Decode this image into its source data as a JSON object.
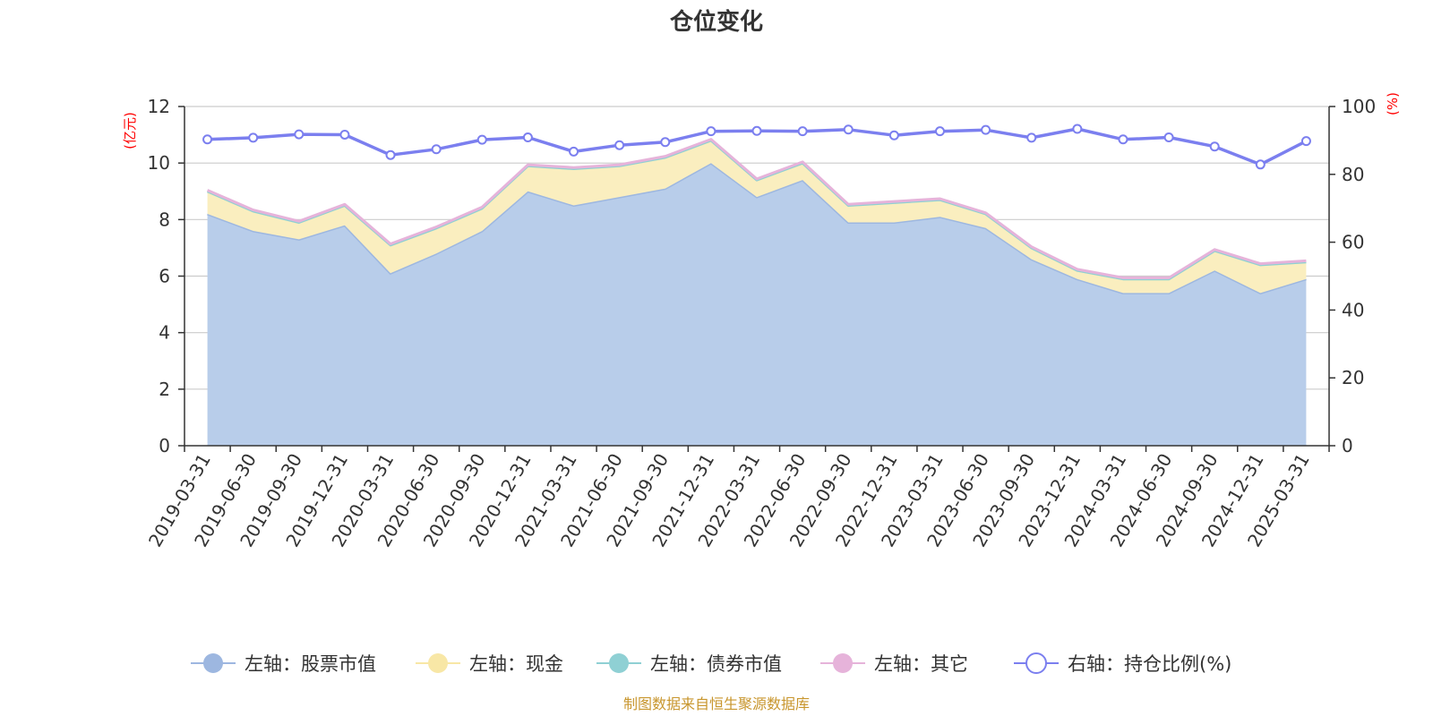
{
  "chart_data": {
    "type": "area",
    "title": "仓位变化",
    "left_axis_unit": "(亿元)",
    "right_axis_unit": "(%)",
    "ylim_left": [
      0,
      12
    ],
    "yticks_left": [
      "0",
      "2",
      "4",
      "6",
      "8",
      "10",
      "12"
    ],
    "ylim_right": [
      0,
      100
    ],
    "yticks_right": [
      "0",
      "20",
      "40",
      "60",
      "80",
      "100"
    ],
    "grid": true,
    "legend_position": "bottom",
    "categories": [
      "2019-03-31",
      "2019-06-30",
      "2019-09-30",
      "2019-12-31",
      "2020-03-31",
      "2020-06-30",
      "2020-09-30",
      "2020-12-31",
      "2021-03-31",
      "2021-06-30",
      "2021-09-30",
      "2021-12-31",
      "2022-03-31",
      "2022-06-30",
      "2022-09-30",
      "2022-12-31",
      "2023-03-31",
      "2023-06-30",
      "2023-09-30",
      "2023-12-31",
      "2024-03-31",
      "2024-06-30",
      "2024-09-30",
      "2024-12-31",
      "2025-03-31"
    ],
    "series": [
      {
        "name": "左轴：股票市值",
        "axis": "left",
        "kind": "stacked-area",
        "color": "#9db7e0",
        "fill": "#b8cdea",
        "values": [
          8.2,
          7.6,
          7.3,
          7.8,
          6.1,
          6.8,
          7.6,
          9.0,
          8.5,
          8.8,
          9.1,
          10.0,
          8.8,
          9.4,
          7.9,
          7.9,
          8.1,
          7.7,
          6.6,
          5.9,
          5.4,
          5.4,
          6.2,
          5.4,
          5.9
        ]
      },
      {
        "name": "左轴：现金",
        "axis": "left",
        "kind": "stacked-area",
        "color": "#f8e7a6",
        "fill": "#faeebf",
        "values": [
          0.8,
          0.7,
          0.6,
          0.7,
          1.0,
          0.9,
          0.8,
          0.9,
          1.3,
          1.1,
          1.1,
          0.8,
          0.6,
          0.6,
          0.6,
          0.7,
          0.6,
          0.5,
          0.4,
          0.3,
          0.5,
          0.5,
          0.7,
          1.0,
          0.6
        ]
      },
      {
        "name": "左轴：债券市值",
        "axis": "left",
        "kind": "stacked-area",
        "color": "#8fd0d4",
        "fill": "#a8dcdf",
        "values": [
          0,
          0,
          0,
          0,
          0,
          0,
          0,
          0,
          0,
          0,
          0,
          0,
          0,
          0,
          0,
          0,
          0,
          0,
          0,
          0,
          0,
          0,
          0,
          0,
          0
        ]
      },
      {
        "name": "左轴：其它",
        "axis": "left",
        "kind": "stacked-area",
        "color": "#e6b3da",
        "fill": "#eec6e4",
        "values": [
          0.04,
          0.04,
          0.04,
          0.04,
          0.04,
          0.04,
          0.04,
          0.04,
          0.04,
          0.04,
          0.04,
          0.04,
          0.04,
          0.04,
          0.04,
          0.04,
          0.04,
          0.04,
          0.04,
          0.04,
          0.04,
          0.04,
          0.04,
          0.04,
          0.04
        ]
      },
      {
        "name": "右轴：持仓比例(%)",
        "axis": "right",
        "kind": "line",
        "color": "#7b7fef",
        "values": [
          90.3,
          90.8,
          91.8,
          91.7,
          85.7,
          87.4,
          90.2,
          90.9,
          86.7,
          88.6,
          89.5,
          92.7,
          92.8,
          92.7,
          93.2,
          91.5,
          92.7,
          93.1,
          90.8,
          93.4,
          90.3,
          90.9,
          88.2,
          82.9,
          89.8
        ]
      }
    ]
  },
  "source": "制图数据来自恒生聚源数据库",
  "colors": {
    "axis": "#333333",
    "grid": "#cccccc",
    "unit_label": "#ff0000",
    "source": "#c8962e",
    "title": "#333333"
  }
}
